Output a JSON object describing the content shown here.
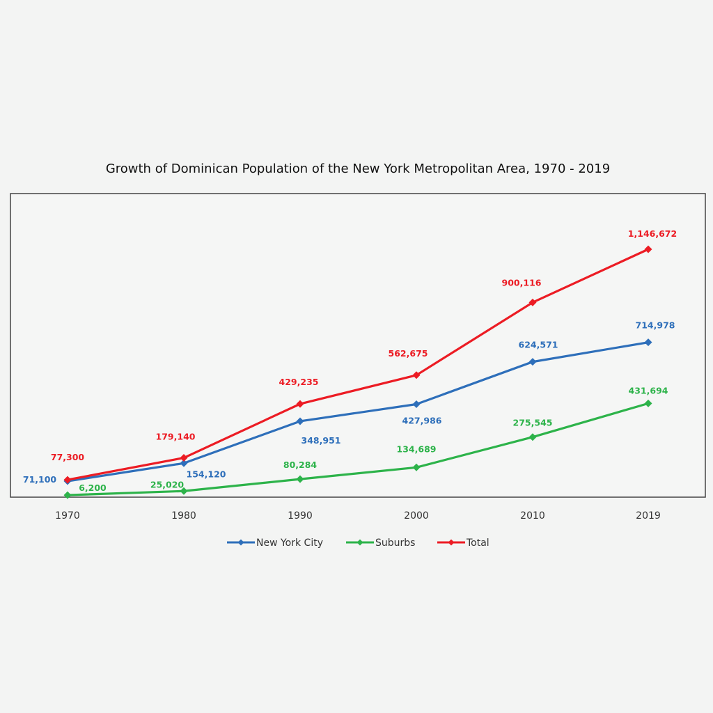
{
  "chart_data": {
    "type": "line",
    "title": "Growth of Dominican Population of the New York Metropolitan Area, 1970 - 2019",
    "categories": [
      "1970",
      "1980",
      "1990",
      "2000",
      "2010",
      "2019"
    ],
    "ylim": [
      0,
      1250000
    ],
    "grid": false,
    "legend_position": "bottom",
    "series": [
      {
        "name": "New York City",
        "color": "#2e6fba",
        "values": [
          71100,
          154120,
          348951,
          427986,
          624571,
          714978
        ],
        "labels": [
          "71,100",
          "154,120",
          "348,951",
          "427,986",
          "624,571",
          "714,978"
        ]
      },
      {
        "name": "Suburbs",
        "color": "#2db34a",
        "values": [
          6200,
          25020,
          80284,
          134689,
          275545,
          431694
        ],
        "labels": [
          "6,200",
          "25,020",
          "80,284",
          "134,689",
          "275,545",
          "431,694"
        ]
      },
      {
        "name": "Total",
        "color": "#ec1c24",
        "values": [
          77300,
          179140,
          429235,
          562675,
          900116,
          1146672
        ],
        "labels": [
          "77,300",
          "179,140",
          "429,235",
          "562,675",
          "900,116",
          "1,146,672"
        ]
      }
    ]
  }
}
